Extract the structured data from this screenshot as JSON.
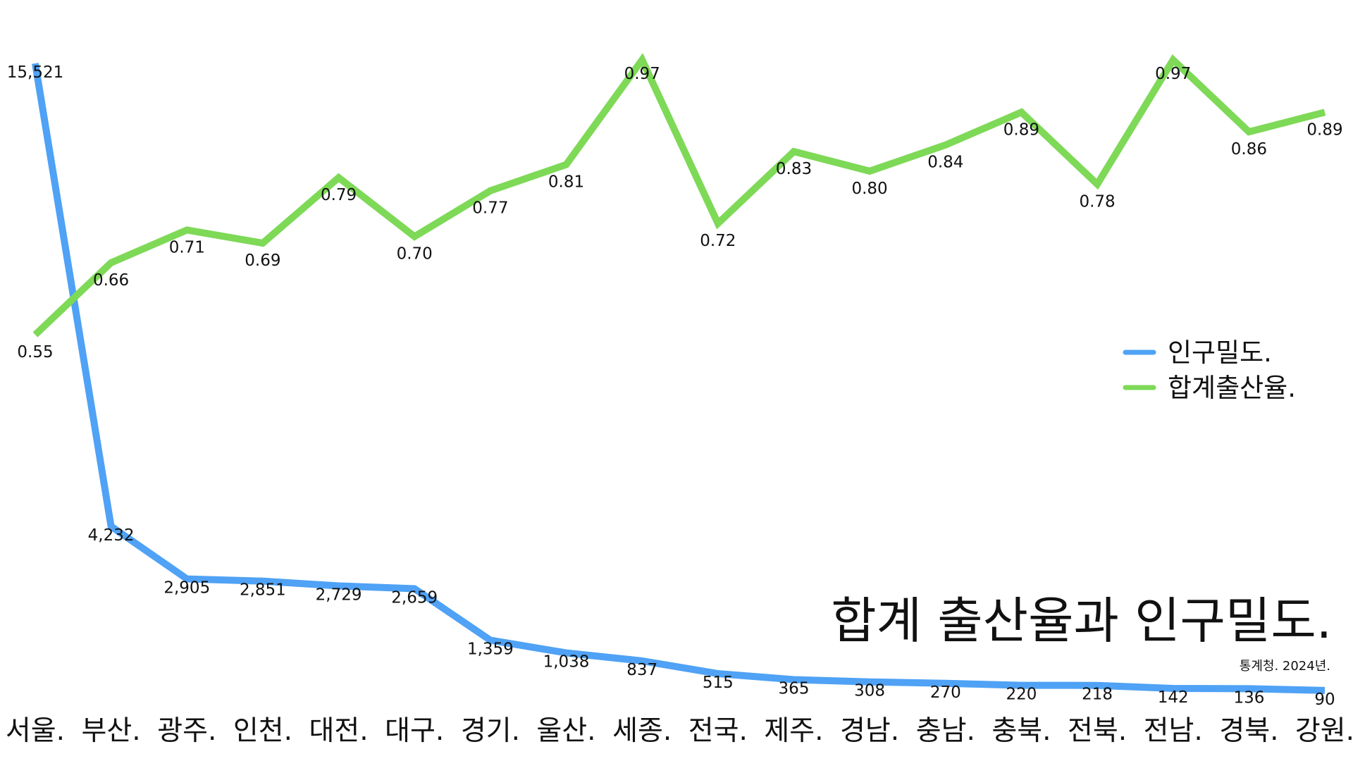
{
  "chart_data": {
    "type": "line",
    "title": "합계 출산율과 인구밀도.",
    "source": "통계청. 2024년.",
    "categories": [
      "서울.",
      "부산.",
      "광주.",
      "인천.",
      "대전.",
      "대구.",
      "경기.",
      "울산.",
      "세종.",
      "전국.",
      "제주.",
      "경남.",
      "충남.",
      "충북.",
      "전북.",
      "전남.",
      "경북.",
      "강원."
    ],
    "series": [
      {
        "name": "인구밀도.",
        "color": "#4FA2F5",
        "values": [
          15521,
          4232,
          2905,
          2851,
          2729,
          2659,
          1359,
          1038,
          837,
          515,
          365,
          308,
          270,
          220,
          218,
          142,
          136,
          90
        ],
        "labels": [
          "15,521",
          "4,232",
          "2,905",
          "2,851",
          "2,729",
          "2,659",
          "1,359",
          "1,038",
          "837",
          "515",
          "365",
          "308",
          "270",
          "220",
          "218",
          "142",
          "136",
          "90"
        ],
        "ylim": [
          0,
          15521
        ]
      },
      {
        "name": "합계출산율.",
        "color": "#7ED957",
        "values": [
          0.55,
          0.66,
          0.71,
          0.69,
          0.79,
          0.7,
          0.77,
          0.81,
          0.97,
          0.72,
          0.83,
          0.8,
          0.84,
          0.89,
          0.78,
          0.97,
          0.86,
          0.89
        ],
        "labels": [
          "0.55",
          "0.66",
          "0.71",
          "0.69",
          "0.79",
          "0.70",
          "0.77",
          "0.81",
          "0.97",
          "0.72",
          "0.83",
          "0.80",
          "0.84",
          "0.89",
          "0.78",
          "0.97",
          "0.86",
          "0.89"
        ],
        "ylim": [
          0.55,
          0.97
        ]
      }
    ],
    "legend_position": "right",
    "grid": false
  }
}
